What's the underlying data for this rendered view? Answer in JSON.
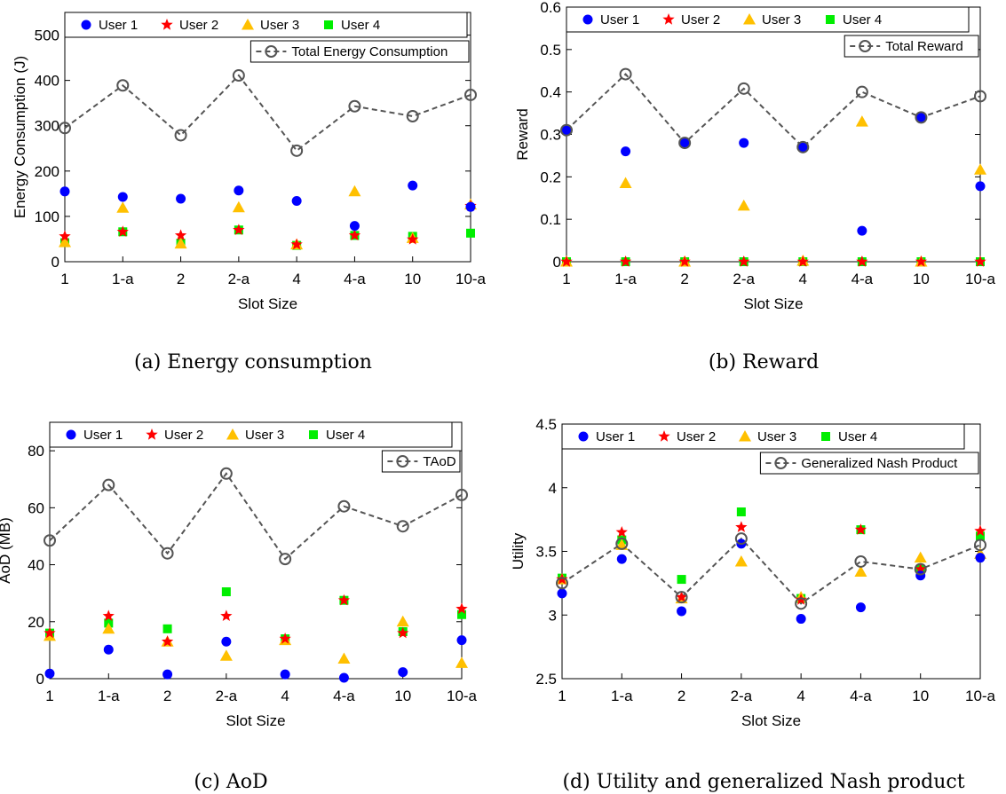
{
  "chart_data": [
    {
      "type": "scatter",
      "caption": "(a) Energy consumption",
      "categories": [
        "1",
        "1-a",
        "2",
        "2-a",
        "4",
        "4-a",
        "10",
        "10-a"
      ],
      "xlabel": "Slot Size",
      "ylabel": "Energy Consumption (J)",
      "ylim": [
        0,
        550
      ],
      "yticks": [
        "0",
        "100",
        "200",
        "300",
        "400",
        "500"
      ],
      "legend_top": [
        "User 1",
        "User 2",
        "User 3",
        "User 4"
      ],
      "legend_line": "Total Energy Consumption",
      "series": [
        {
          "name": "User 1",
          "marker": "circle",
          "color": "#0000ff",
          "values": [
            155,
            143,
            139,
            157,
            134,
            79,
            168,
            121
          ]
        },
        {
          "name": "User 2",
          "marker": "star",
          "color": "#ff0000",
          "values": [
            56,
            66,
            58,
            70,
            38,
            58,
            49,
            123
          ]
        },
        {
          "name": "User 3",
          "marker": "triangle",
          "color": "#ffc000",
          "values": [
            43,
            119,
            40,
            120,
            38,
            155,
            52,
            126
          ]
        },
        {
          "name": "User 4",
          "marker": "square",
          "color": "#00ee00",
          "values": [
            42,
            66,
            41,
            70,
            36,
            58,
            56,
            63
          ]
        },
        {
          "name": "Total Energy Consumption",
          "marker": "open-circle-dashed",
          "color": "#555555",
          "values": [
            295,
            389,
            279,
            411,
            245,
            343,
            321,
            368
          ]
        }
      ]
    },
    {
      "type": "scatter",
      "caption": "(b) Reward",
      "categories": [
        "1",
        "1-a",
        "2",
        "2-a",
        "4",
        "4-a",
        "10",
        "10-a"
      ],
      "xlabel": "Slot Size",
      "ylabel": "Reward",
      "ylim": [
        0,
        0.6
      ],
      "yticks": [
        "0",
        "0.1",
        "0.2",
        "0.3",
        "0.4",
        "0.5",
        "0.6"
      ],
      "legend_top": [
        "User 1",
        "User 2",
        "User 3",
        "User 4"
      ],
      "legend_line": "Total Reward",
      "series": [
        {
          "name": "User 1",
          "marker": "circle",
          "color": "#0000ff",
          "values": [
            0.31,
            0.26,
            0.28,
            0.28,
            0.27,
            0.073,
            0.34,
            0.178
          ]
        },
        {
          "name": "User 2",
          "marker": "star",
          "color": "#ff0000",
          "values": [
            0,
            0,
            0,
            0,
            0,
            0,
            0,
            0
          ]
        },
        {
          "name": "User 3",
          "marker": "triangle",
          "color": "#ffc000",
          "values": [
            0,
            0.185,
            0,
            0.132,
            0.002,
            0.33,
            0,
            0.217
          ]
        },
        {
          "name": "User 4",
          "marker": "square",
          "color": "#00ee00",
          "values": [
            0,
            0,
            0,
            0,
            0,
            0,
            0,
            0
          ]
        },
        {
          "name": "Total Reward",
          "marker": "open-circle-dashed",
          "color": "#555555",
          "values": [
            0.31,
            0.442,
            0.28,
            0.408,
            0.27,
            0.4,
            0.34,
            0.39
          ]
        }
      ]
    },
    {
      "type": "scatter",
      "caption": "(c) AoD",
      "categories": [
        "1",
        "1-a",
        "2",
        "2-a",
        "4",
        "4-a",
        "10",
        "10-a"
      ],
      "xlabel": "Slot Size",
      "ylabel": "AoD (MB)",
      "ylim": [
        0,
        90
      ],
      "yticks": [
        "0",
        "20",
        "40",
        "60",
        "80"
      ],
      "legend_top": [
        "User 1",
        "User 2",
        "User 3",
        "User 4"
      ],
      "legend_line": "TAoD",
      "series": [
        {
          "name": "User 1",
          "marker": "circle",
          "color": "#0000ff",
          "values": [
            1.8,
            10.2,
            1.5,
            13,
            1.5,
            0.3,
            2.3,
            13.5
          ]
        },
        {
          "name": "User 2",
          "marker": "star",
          "color": "#ff0000",
          "values": [
            16,
            22,
            13,
            22,
            14,
            27.5,
            16,
            24.5
          ]
        },
        {
          "name": "User 3",
          "marker": "triangle",
          "color": "#ffc000",
          "values": [
            15,
            17.5,
            13,
            8,
            13.5,
            7,
            20,
            5.5
          ]
        },
        {
          "name": "User 4",
          "marker": "square",
          "color": "#00ee00",
          "values": [
            16,
            19.5,
            17.5,
            30.5,
            14,
            27.5,
            16.5,
            22.5
          ]
        },
        {
          "name": "TAoD",
          "marker": "open-circle-dashed",
          "color": "#555555",
          "values": [
            48.5,
            68,
            44,
            72,
            42,
            60.5,
            53.5,
            64.5
          ]
        }
      ]
    },
    {
      "type": "scatter",
      "caption": "(d) Utility and generalized Nash product",
      "categories": [
        "1",
        "1-a",
        "2",
        "2-a",
        "4",
        "4-a",
        "10",
        "10-a"
      ],
      "xlabel": "Slot Size",
      "ylabel": "Utility",
      "ylim": [
        2.5,
        4.5
      ],
      "yticks": [
        "2.5",
        "3",
        "3.5",
        "4",
        "4.5"
      ],
      "legend_top": [
        "User 1",
        "User 2",
        "User 3",
        "User 4"
      ],
      "legend_line": "Generalized Nash Product",
      "series": [
        {
          "name": "User 1",
          "marker": "circle",
          "color": "#0000ff",
          "values": [
            3.17,
            3.44,
            3.03,
            3.56,
            2.97,
            3.06,
            3.31,
            3.45
          ]
        },
        {
          "name": "User 2",
          "marker": "star",
          "color": "#ff0000",
          "values": [
            3.28,
            3.65,
            3.14,
            3.69,
            3.12,
            3.67,
            3.36,
            3.66
          ]
        },
        {
          "name": "User 3",
          "marker": "triangle",
          "color": "#ffc000",
          "values": [
            3.28,
            3.55,
            3.13,
            3.42,
            3.14,
            3.34,
            3.45,
            3.48
          ]
        },
        {
          "name": "User 4",
          "marker": "square",
          "color": "#00ee00",
          "values": [
            3.29,
            3.59,
            3.28,
            3.81,
            3.13,
            3.67,
            3.36,
            3.62
          ]
        },
        {
          "name": "Generalized Nash Product",
          "marker": "open-circle-dashed",
          "color": "#555555",
          "values": [
            3.25,
            3.56,
            3.14,
            3.6,
            3.09,
            3.42,
            3.36,
            3.55
          ]
        }
      ]
    }
  ]
}
